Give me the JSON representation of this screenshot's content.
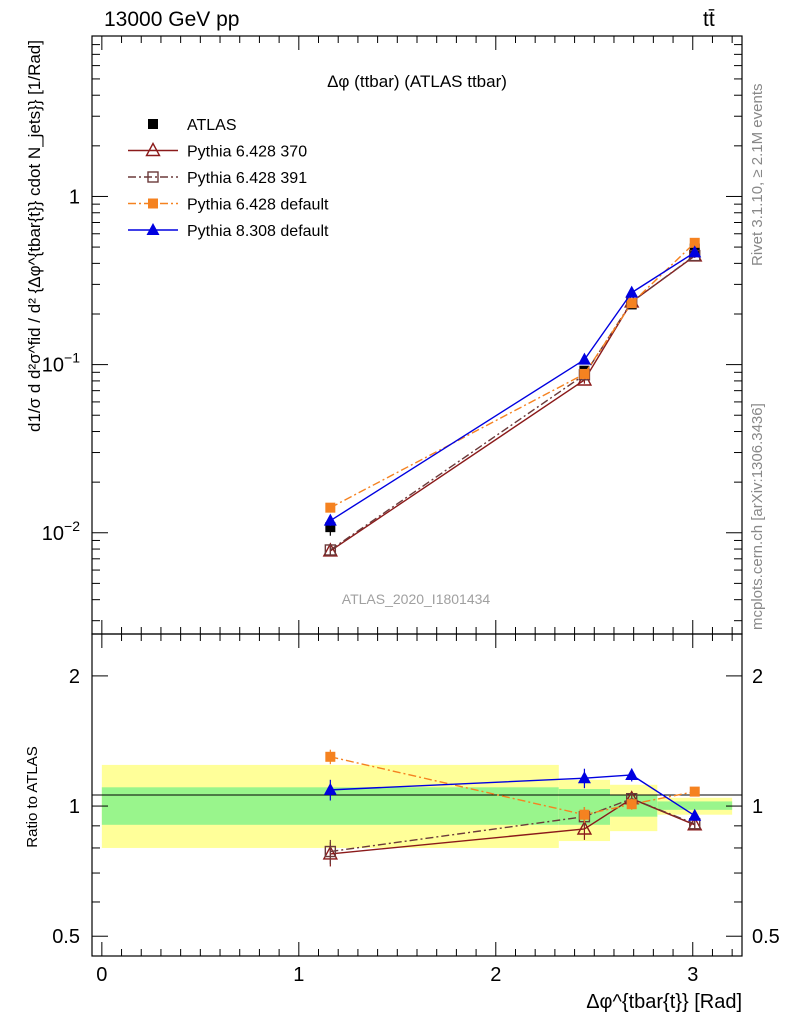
{
  "header": {
    "process": "13000 GeV pp",
    "final_state": "tt̄"
  },
  "side_labels": {
    "rivet": "Rivet 3.1.10, ≥ 2.1M events",
    "source": "mcplots.cern.ch [arXiv:1306.3436]"
  },
  "analysis_id": "ATLAS_2020_I1801434",
  "chart_data": [
    {
      "type": "line",
      "title": "Δφ (ttbar) (ATLAS ttbar)",
      "xlabel": "Δφ^{tbar{t}} [Rad]",
      "ylabel": "d1/σ d d²σ^fid / d² {Δφ^{tbar{t}} cdot N_jets}} [1/Rad]",
      "yscale": "log",
      "xlim": [
        -0.05,
        3.25
      ],
      "ylim": [
        0.0025,
        9.0
      ],
      "y_ticks": [
        {
          "value": 0.01,
          "base": "10",
          "exp": "−2"
        },
        {
          "value": 0.1,
          "base": "10",
          "exp": "−1"
        },
        {
          "value": 1,
          "base": "1",
          "exp": ""
        }
      ],
      "legend_position": "top-left",
      "data_band_x": [
        [
          0.0,
          2.32
        ],
        [
          2.32,
          2.58
        ],
        [
          2.58,
          2.82
        ],
        [
          2.82,
          3.2
        ]
      ],
      "series": [
        {
          "name": "ATLAS",
          "color": "#000000",
          "marker": "square",
          "line": "none",
          "x": [
            1.16,
            2.45,
            2.69,
            3.01
          ],
          "y": [
            0.0108,
            0.092,
            0.228,
            0.49
          ],
          "err": [
            0.0012,
            0.006,
            0.012,
            0.02
          ]
        },
        {
          "name": "Pythia 6.428 370",
          "color": "#8b1a1a",
          "marker": "triangle-open",
          "line": "solid",
          "x": [
            1.16,
            2.45,
            2.69,
            3.01
          ],
          "y": [
            0.0078,
            0.081,
            0.236,
            0.443
          ],
          "err": [
            0.0005,
            0.004,
            0.008,
            0.012
          ]
        },
        {
          "name": "Pythia 6.428 391",
          "color": "#6b3a3a",
          "marker": "square-open",
          "line": "dashdot",
          "x": [
            1.16,
            2.45,
            2.69,
            3.01
          ],
          "y": [
            0.0079,
            0.087,
            0.236,
            0.445
          ],
          "err": [
            0.0005,
            0.004,
            0.008,
            0.012
          ]
        },
        {
          "name": "Pythia 6.428 default",
          "color": "#f58220",
          "marker": "square",
          "line": "dashdot",
          "x": [
            1.16,
            2.45,
            2.69,
            3.01
          ],
          "y": [
            0.0141,
            0.088,
            0.232,
            0.53
          ],
          "err": [
            0.0008,
            0.004,
            0.008,
            0.015
          ]
        },
        {
          "name": "Pythia 8.308 default",
          "color": "#0000e0",
          "marker": "triangle",
          "line": "solid",
          "x": [
            1.16,
            2.45,
            2.69,
            3.01
          ],
          "y": [
            0.0118,
            0.107,
            0.268,
            0.465
          ],
          "err": [
            0.0008,
            0.006,
            0.01,
            0.014
          ]
        }
      ]
    },
    {
      "type": "line",
      "ylabel": "Ratio to ATLAS",
      "xlabel": "Δφ^{tbar{t}} [Rad]",
      "yscale": "log",
      "xlim": [
        -0.05,
        3.25
      ],
      "ylim": [
        0.45,
        2.5
      ],
      "x_ticks": [
        "0",
        "1",
        "2",
        "3"
      ],
      "y_ticks": [
        "0.5",
        "1",
        "2"
      ],
      "uncertainty_bands": [
        {
          "x": [
            0.0,
            2.32
          ],
          "inner": [
            0.905,
            1.105
          ],
          "outer": [
            0.8,
            1.245
          ]
        },
        {
          "x": [
            2.32,
            2.58
          ],
          "inner": [
            0.905,
            1.095
          ],
          "outer": [
            0.83,
            1.15
          ]
        },
        {
          "x": [
            2.58,
            2.82
          ],
          "inner": [
            0.945,
            1.06
          ],
          "outer": [
            0.875,
            1.12
          ]
        },
        {
          "x": [
            2.82,
            3.2
          ],
          "inner": [
            0.98,
            1.025
          ],
          "outer": [
            0.955,
            1.045
          ]
        }
      ],
      "series": [
        {
          "name": "Pythia 6.428 370",
          "y": [
            0.775,
            0.885,
            1.04,
            0.905
          ],
          "err": [
            0.05,
            0.05,
            0.03,
            0.02
          ]
        },
        {
          "name": "Pythia 6.428 391",
          "y": [
            0.785,
            0.945,
            1.04,
            0.91
          ],
          "err": [
            0.05,
            0.05,
            0.03,
            0.02
          ]
        },
        {
          "name": "Pythia 6.428 default",
          "y": [
            1.3,
            0.955,
            1.01,
            1.08
          ],
          "err": [
            0.05,
            0.04,
            0.03,
            0.02
          ]
        },
        {
          "name": "Pythia 8.308 default",
          "y": [
            1.09,
            1.16,
            1.18,
            0.95
          ],
          "err": [
            0.06,
            0.06,
            0.04,
            0.02
          ]
        }
      ]
    }
  ]
}
